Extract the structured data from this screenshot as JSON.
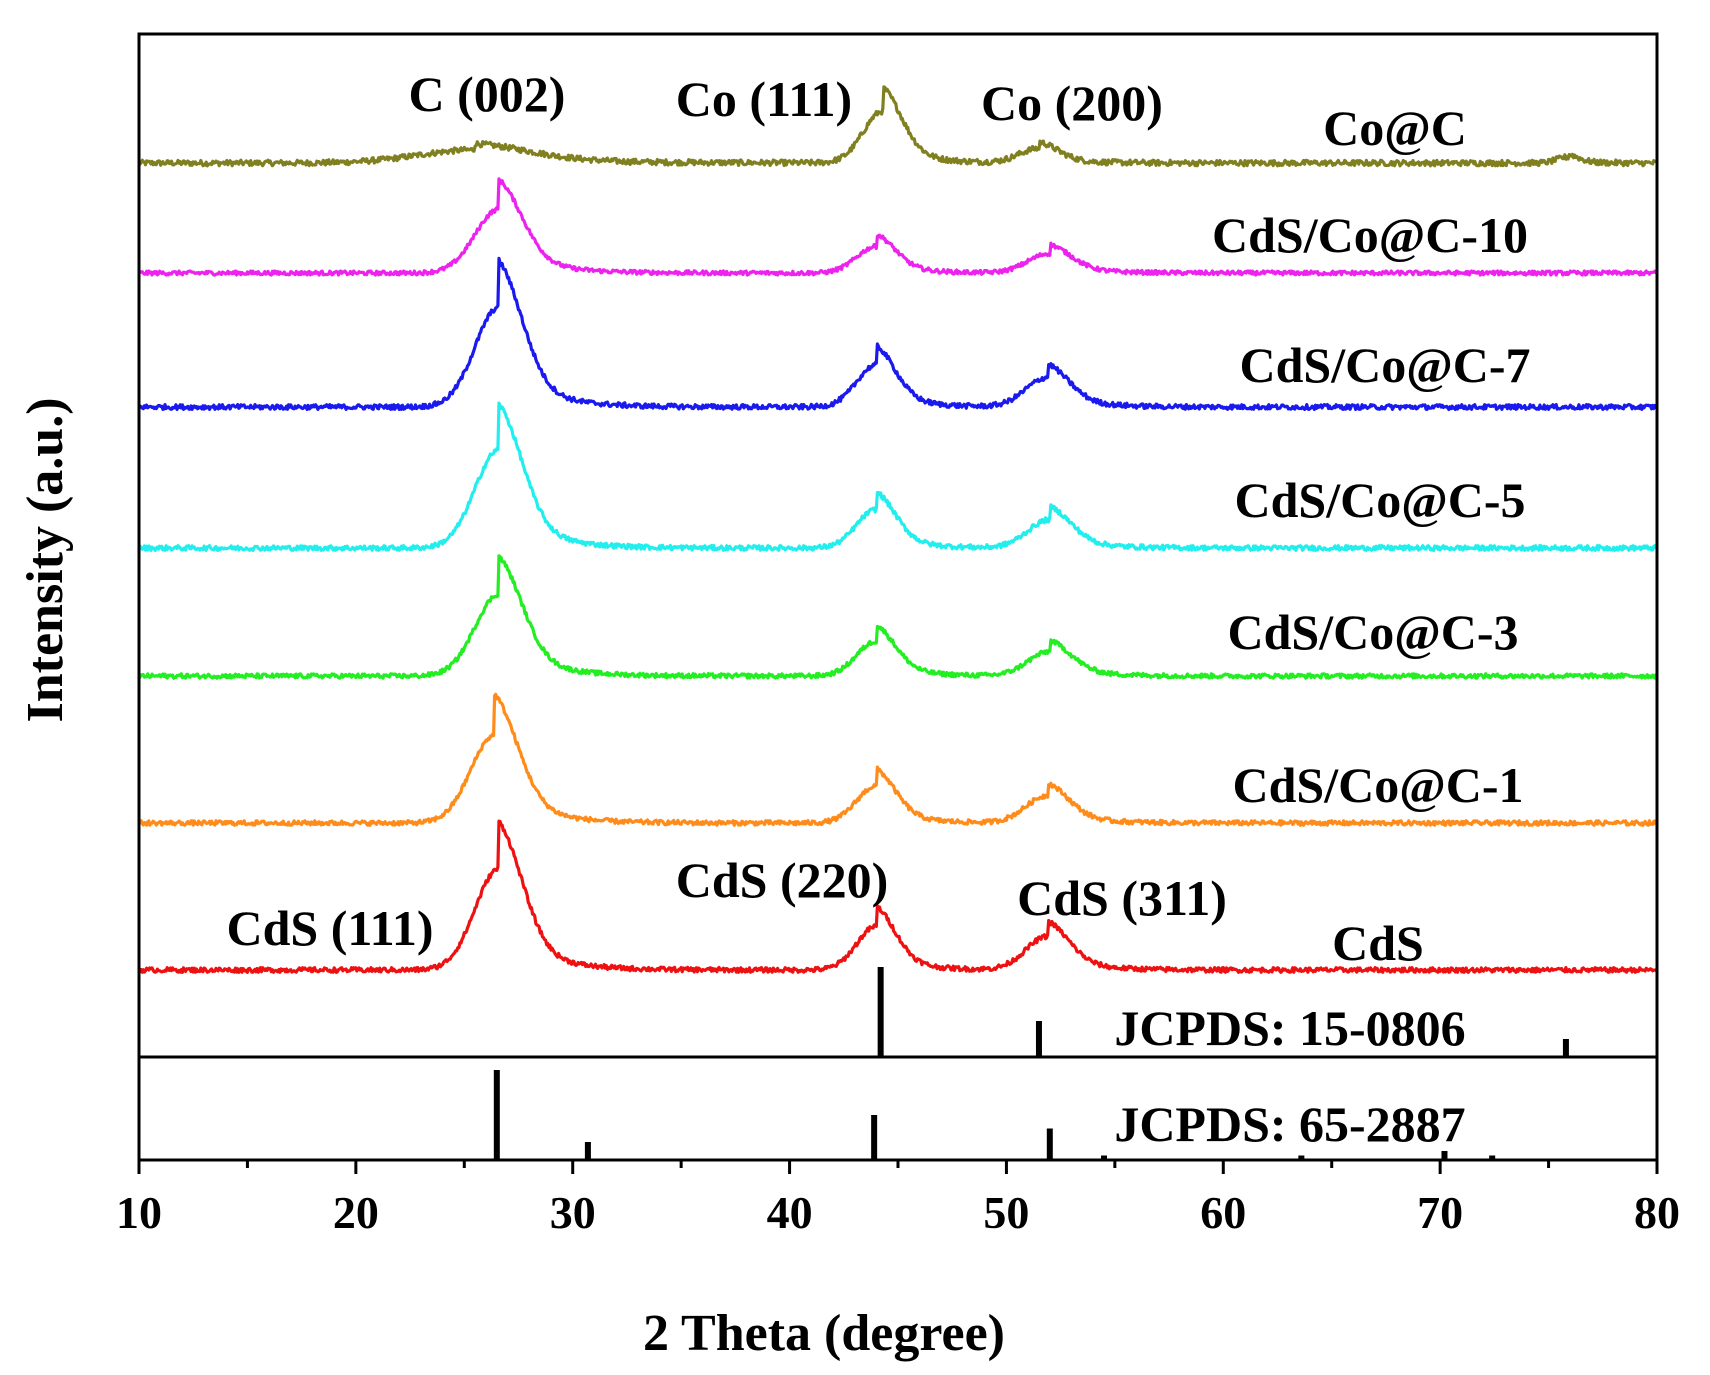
{
  "chart_data": {
    "type": "line",
    "title": "",
    "xlabel": "2 Theta (degree)",
    "ylabel": "Intensity (a.u.)",
    "xlim": [
      10,
      80
    ],
    "x_ticks": [
      10,
      20,
      30,
      40,
      50,
      60,
      70,
      80
    ],
    "x_tick_labels": [
      "10",
      "20",
      "30",
      "40",
      "50",
      "60",
      "70",
      "80"
    ],
    "series": [
      {
        "name": "Co@C",
        "color": "#808020",
        "baseline": 0.0,
        "peaks": [
          {
            "pos": 25.5,
            "height": 0.11,
            "width": 2.6
          },
          {
            "pos": 44.3,
            "height": 0.43,
            "width": 0.9
          },
          {
            "pos": 51.5,
            "height": 0.12,
            "width": 0.9
          },
          {
            "pos": 75.9,
            "height": 0.05,
            "width": 0.5
          }
        ]
      },
      {
        "name": "CdS/Co@C-10",
        "color": "#ee22ee",
        "baseline": 0.0,
        "peaks": [
          {
            "pos": 26.6,
            "height": 0.72,
            "width": 1.1
          },
          {
            "pos": 44.0,
            "height": 0.3,
            "width": 0.9
          },
          {
            "pos": 52.0,
            "height": 0.22,
            "width": 1.0
          }
        ]
      },
      {
        "name": "CdS/Co@C-7",
        "color": "#1a1aee",
        "baseline": 0.0,
        "peaks": [
          {
            "pos": 26.6,
            "height": 0.95,
            "width": 1.1
          },
          {
            "pos": 44.0,
            "height": 0.4,
            "width": 0.9
          },
          {
            "pos": 51.9,
            "height": 0.28,
            "width": 1.0
          }
        ]
      },
      {
        "name": "CdS/Co@C-5",
        "color": "#22eeee",
        "baseline": 0.0,
        "peaks": [
          {
            "pos": 26.6,
            "height": 0.97,
            "width": 1.1
          },
          {
            "pos": 44.0,
            "height": 0.38,
            "width": 0.9
          },
          {
            "pos": 52.0,
            "height": 0.28,
            "width": 1.0
          }
        ]
      },
      {
        "name": "CdS/Co@C-3",
        "color": "#22ee22",
        "baseline": 0.0,
        "peaks": [
          {
            "pos": 26.6,
            "height": 0.87,
            "width": 1.1
          },
          {
            "pos": 44.0,
            "height": 0.37,
            "width": 0.9
          },
          {
            "pos": 52.0,
            "height": 0.26,
            "width": 1.0
          }
        ]
      },
      {
        "name": "CdS/Co@C-1",
        "color": "#ff8c1a",
        "baseline": 0.0,
        "peaks": [
          {
            "pos": 26.4,
            "height": 0.9,
            "width": 1.1
          },
          {
            "pos": 44.0,
            "height": 0.38,
            "width": 0.9
          },
          {
            "pos": 51.9,
            "height": 0.28,
            "width": 1.0
          }
        ]
      },
      {
        "name": "CdS",
        "color": "#ee1111",
        "baseline": 0.0,
        "peaks": [
          {
            "pos": 26.6,
            "height": 1.0,
            "width": 1.1
          },
          {
            "pos": 44.0,
            "height": 0.43,
            "width": 0.9
          },
          {
            "pos": 51.9,
            "height": 0.33,
            "width": 1.0
          }
        ]
      }
    ],
    "reference_patterns": [
      {
        "name": "JCPDS: 15-0806",
        "sticks": [
          {
            "pos": 44.2,
            "intensity": 1.0
          },
          {
            "pos": 51.5,
            "intensity": 0.4
          },
          {
            "pos": 75.8,
            "intensity": 0.2
          }
        ]
      },
      {
        "name": "JCPDS: 65-2887",
        "sticks": [
          {
            "pos": 26.5,
            "intensity": 1.0
          },
          {
            "pos": 30.7,
            "intensity": 0.2
          },
          {
            "pos": 43.9,
            "intensity": 0.5
          },
          {
            "pos": 52.0,
            "intensity": 0.35
          },
          {
            "pos": 54.5,
            "intensity": 0.05
          },
          {
            "pos": 63.6,
            "intensity": 0.05
          },
          {
            "pos": 70.2,
            "intensity": 0.1
          },
          {
            "pos": 72.4,
            "intensity": 0.05
          }
        ]
      }
    ],
    "annotations": [
      {
        "text": "C (002)",
        "x": 26.0,
        "series": "Co@C"
      },
      {
        "text": "Co (111)",
        "x": 41.0,
        "series": "Co@C"
      },
      {
        "text": "Co (200)",
        "x": 51.0,
        "series": "Co@C"
      },
      {
        "text": "CdS (111)",
        "x": 19.0,
        "series": "CdS"
      },
      {
        "text": "CdS (220)",
        "x": 39.5,
        "series": "CdS"
      },
      {
        "text": "CdS (311)",
        "x": 55.3,
        "series": "CdS"
      }
    ]
  }
}
